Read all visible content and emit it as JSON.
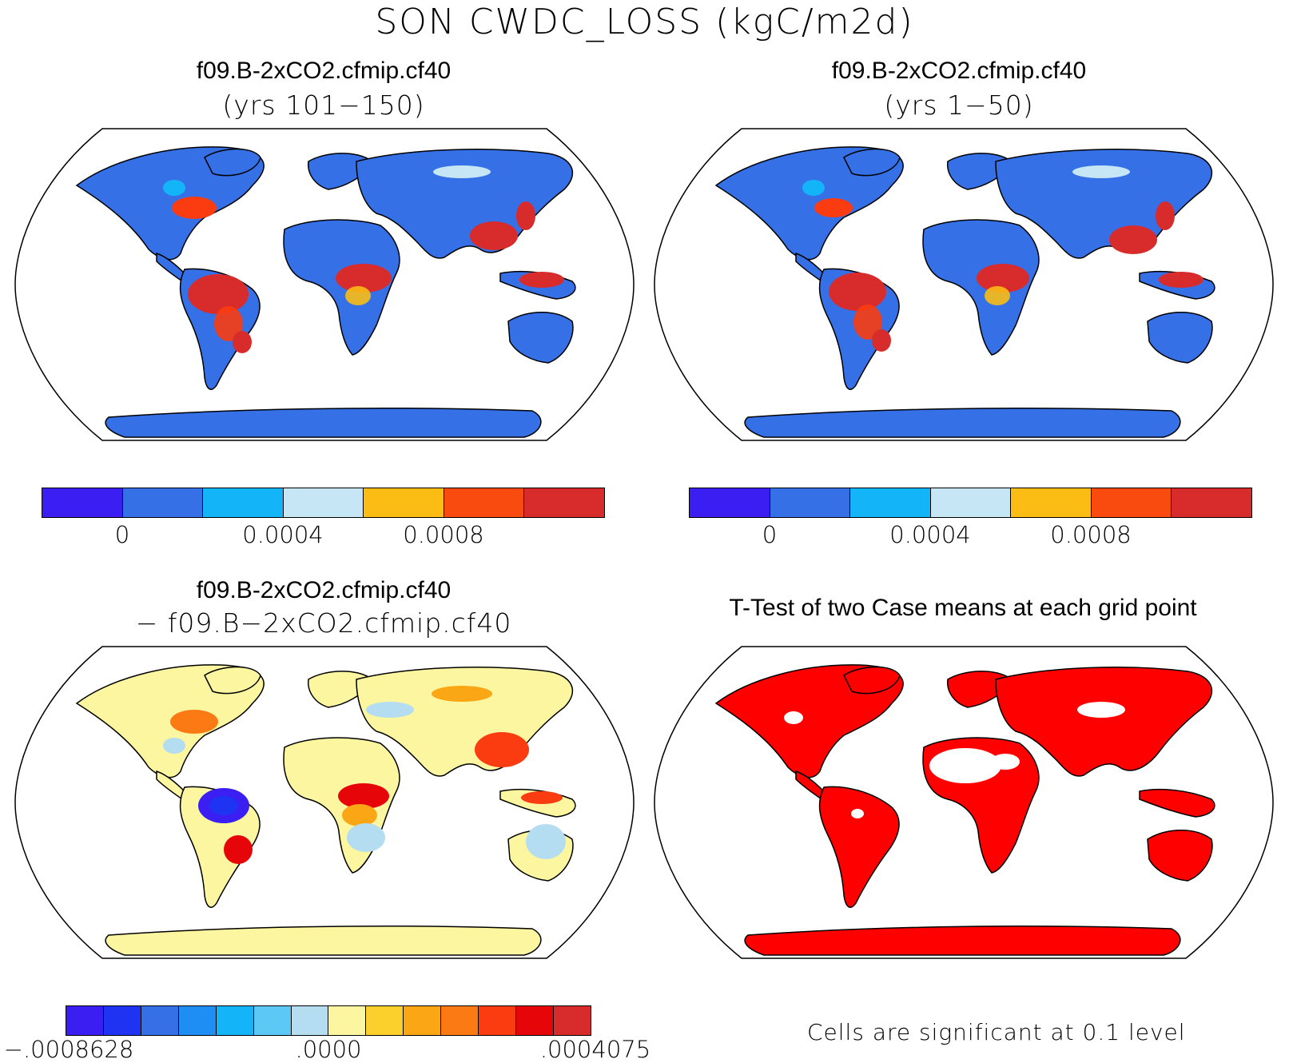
{
  "title": "SON CWDC_LOSS (kgC/m2d)",
  "panels": [
    {
      "title": "f09.B-2xCO2.cfmip.cf40",
      "subtitle": "(yrs 101−150)"
    },
    {
      "title": "f09.B-2xCO2.cfmip.cf40",
      "subtitle": "(yrs 1−50)"
    },
    {
      "title": "f09.B-2xCO2.cfmip.cf40",
      "subtitle": "− f09.B−2xCO2.cfmip.cf40"
    },
    {
      "title": "T-Test of two Case means at each grid point",
      "subtitle": ""
    }
  ],
  "colorbar_top": {
    "colors": [
      "#3a1ef2",
      "#3670e6",
      "#14b4f8",
      "#c6e6f6",
      "#fbbd14",
      "#f94a10",
      "#d82c2c"
    ],
    "ticks": [
      "0",
      "0.0004",
      "0.0008"
    ]
  },
  "colorbar_diff": {
    "colors": [
      "#3a1ef2",
      "#1f34f2",
      "#3670e6",
      "#1e8ef5",
      "#14b4f8",
      "#5cc8f5",
      "#b4ddf2",
      "#fdf6a0",
      "#fbd02c",
      "#fba614",
      "#fb7a14",
      "#fb3c10",
      "#e6060a",
      "#d82c2c"
    ],
    "ticks": [
      "−.0008628",
      ".0000",
      ".0004075"
    ]
  },
  "significance_note": "Cells are significant at 0.1 level",
  "chart_data": [
    {
      "type": "heatmap",
      "title": "f09.B-2xCO2.cfmip.cf40",
      "subtitle": "(yrs 101−150)",
      "projection": "robinson",
      "colorbar_levels": [
        "0",
        "0.0004",
        "0.0008"
      ],
      "base_color": "#3670e6",
      "hotspots": [
        "Amazon",
        "Congo Basin",
        "Southeast Asia",
        "Indonesia",
        "Eastern United States",
        "Southeast Brazil"
      ]
    },
    {
      "type": "heatmap",
      "title": "f09.B-2xCO2.cfmip.cf40",
      "subtitle": "(yrs 1−50)",
      "projection": "robinson",
      "colorbar_levels": [
        "0",
        "0.0004",
        "0.0008"
      ],
      "base_color": "#3670e6",
      "hotspots": [
        "Amazon",
        "Congo Basin",
        "Southeast Asia",
        "Indonesia",
        "Eastern United States",
        "Southeast Brazil"
      ]
    },
    {
      "type": "heatmap",
      "title": "f09.B-2xCO2.cfmip.cf40",
      "subtitle": "− f09.B−2xCO2.cfmip.cf40",
      "projection": "robinson",
      "colorbar_range": [
        "−.0008628",
        ".0000",
        ".0004075"
      ],
      "negative_regions": [
        "Amazon"
      ],
      "positive_regions": [
        "Congo Basin",
        "Eastern United States",
        "Southern China",
        "Southeast Brazil"
      ]
    },
    {
      "type": "heatmap",
      "title": "T-Test of two Case means at each grid point",
      "projection": "robinson",
      "significance_level": 0.1,
      "significant_color": "#ff0000"
    }
  ]
}
